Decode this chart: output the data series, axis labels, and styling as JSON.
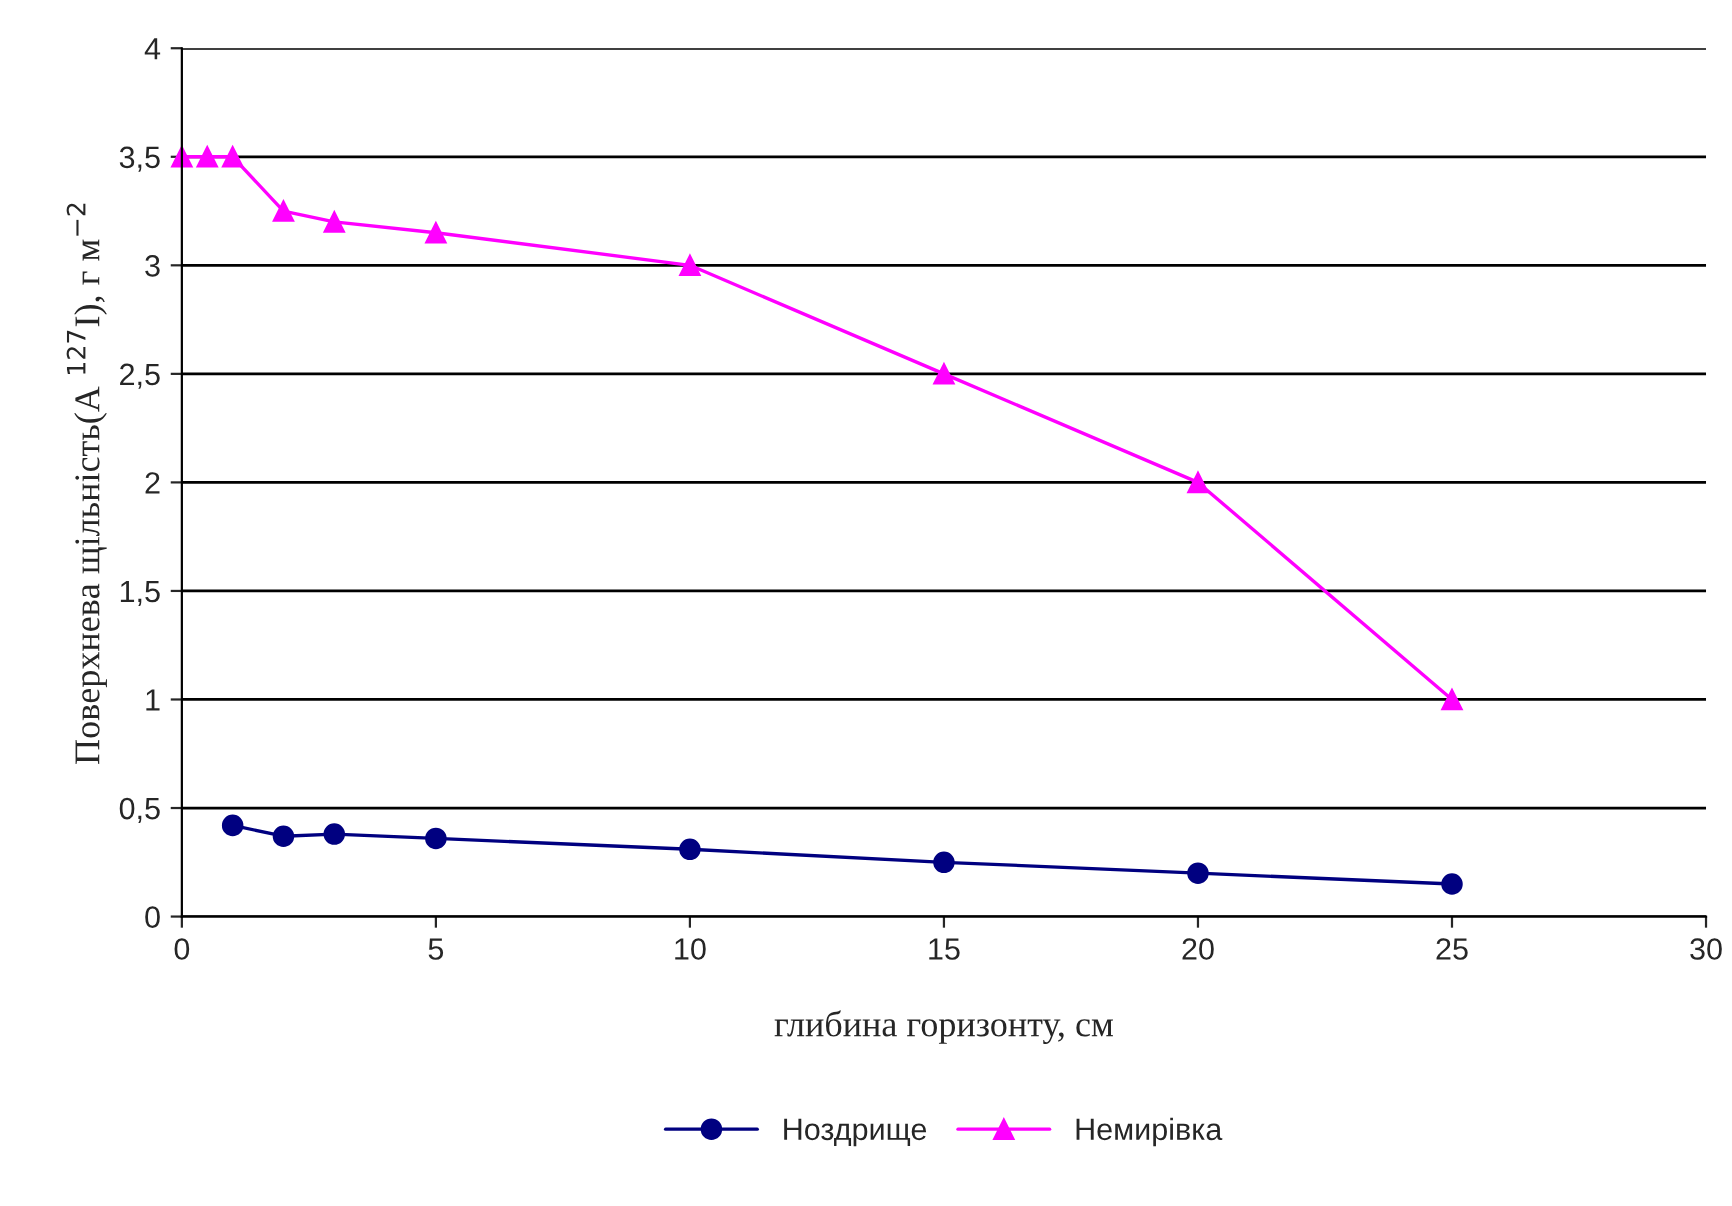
{
  "chart_data": {
    "type": "line",
    "xlabel": "глибина горизонту, см",
    "ylabel": "Поверхнева щільність(A $^{127}$I), г м$^{−2}$",
    "xlim": [
      0,
      30
    ],
    "xticks": [
      0,
      5,
      10,
      15,
      20,
      25,
      30
    ],
    "ylim": [
      0,
      4
    ],
    "yticks": [
      {
        "value": 0,
        "label": "0"
      },
      {
        "value": 0.5,
        "label": "0,5"
      },
      {
        "value": 1,
        "label": "1"
      },
      {
        "value": 1.5,
        "label": "1,5"
      },
      {
        "value": 2,
        "label": "2"
      },
      {
        "value": 2.5,
        "label": "2,5"
      },
      {
        "value": 3,
        "label": "3"
      },
      {
        "value": 3.5,
        "label": "3,5"
      },
      {
        "value": 4,
        "label": "4"
      }
    ],
    "grid": "y",
    "legend": "bottom",
    "series": [
      {
        "name": "Ноздрище",
        "color": "#000080",
        "marker": "circle",
        "x": [
          1,
          2,
          3,
          5,
          10,
          15,
          20,
          25
        ],
        "values": [
          0.42,
          0.37,
          0.38,
          0.36,
          0.31,
          0.25,
          0.2,
          0.15
        ]
      },
      {
        "name": "Немирівка",
        "color": "#ff00ff",
        "marker": "triangle",
        "x": [
          0,
          0.5,
          1,
          2,
          3,
          5,
          10,
          15,
          20,
          25
        ],
        "values": [
          3.5,
          3.5,
          3.5,
          3.25,
          3.2,
          3.15,
          3.0,
          2.5,
          2.0,
          1.0
        ]
      }
    ]
  }
}
